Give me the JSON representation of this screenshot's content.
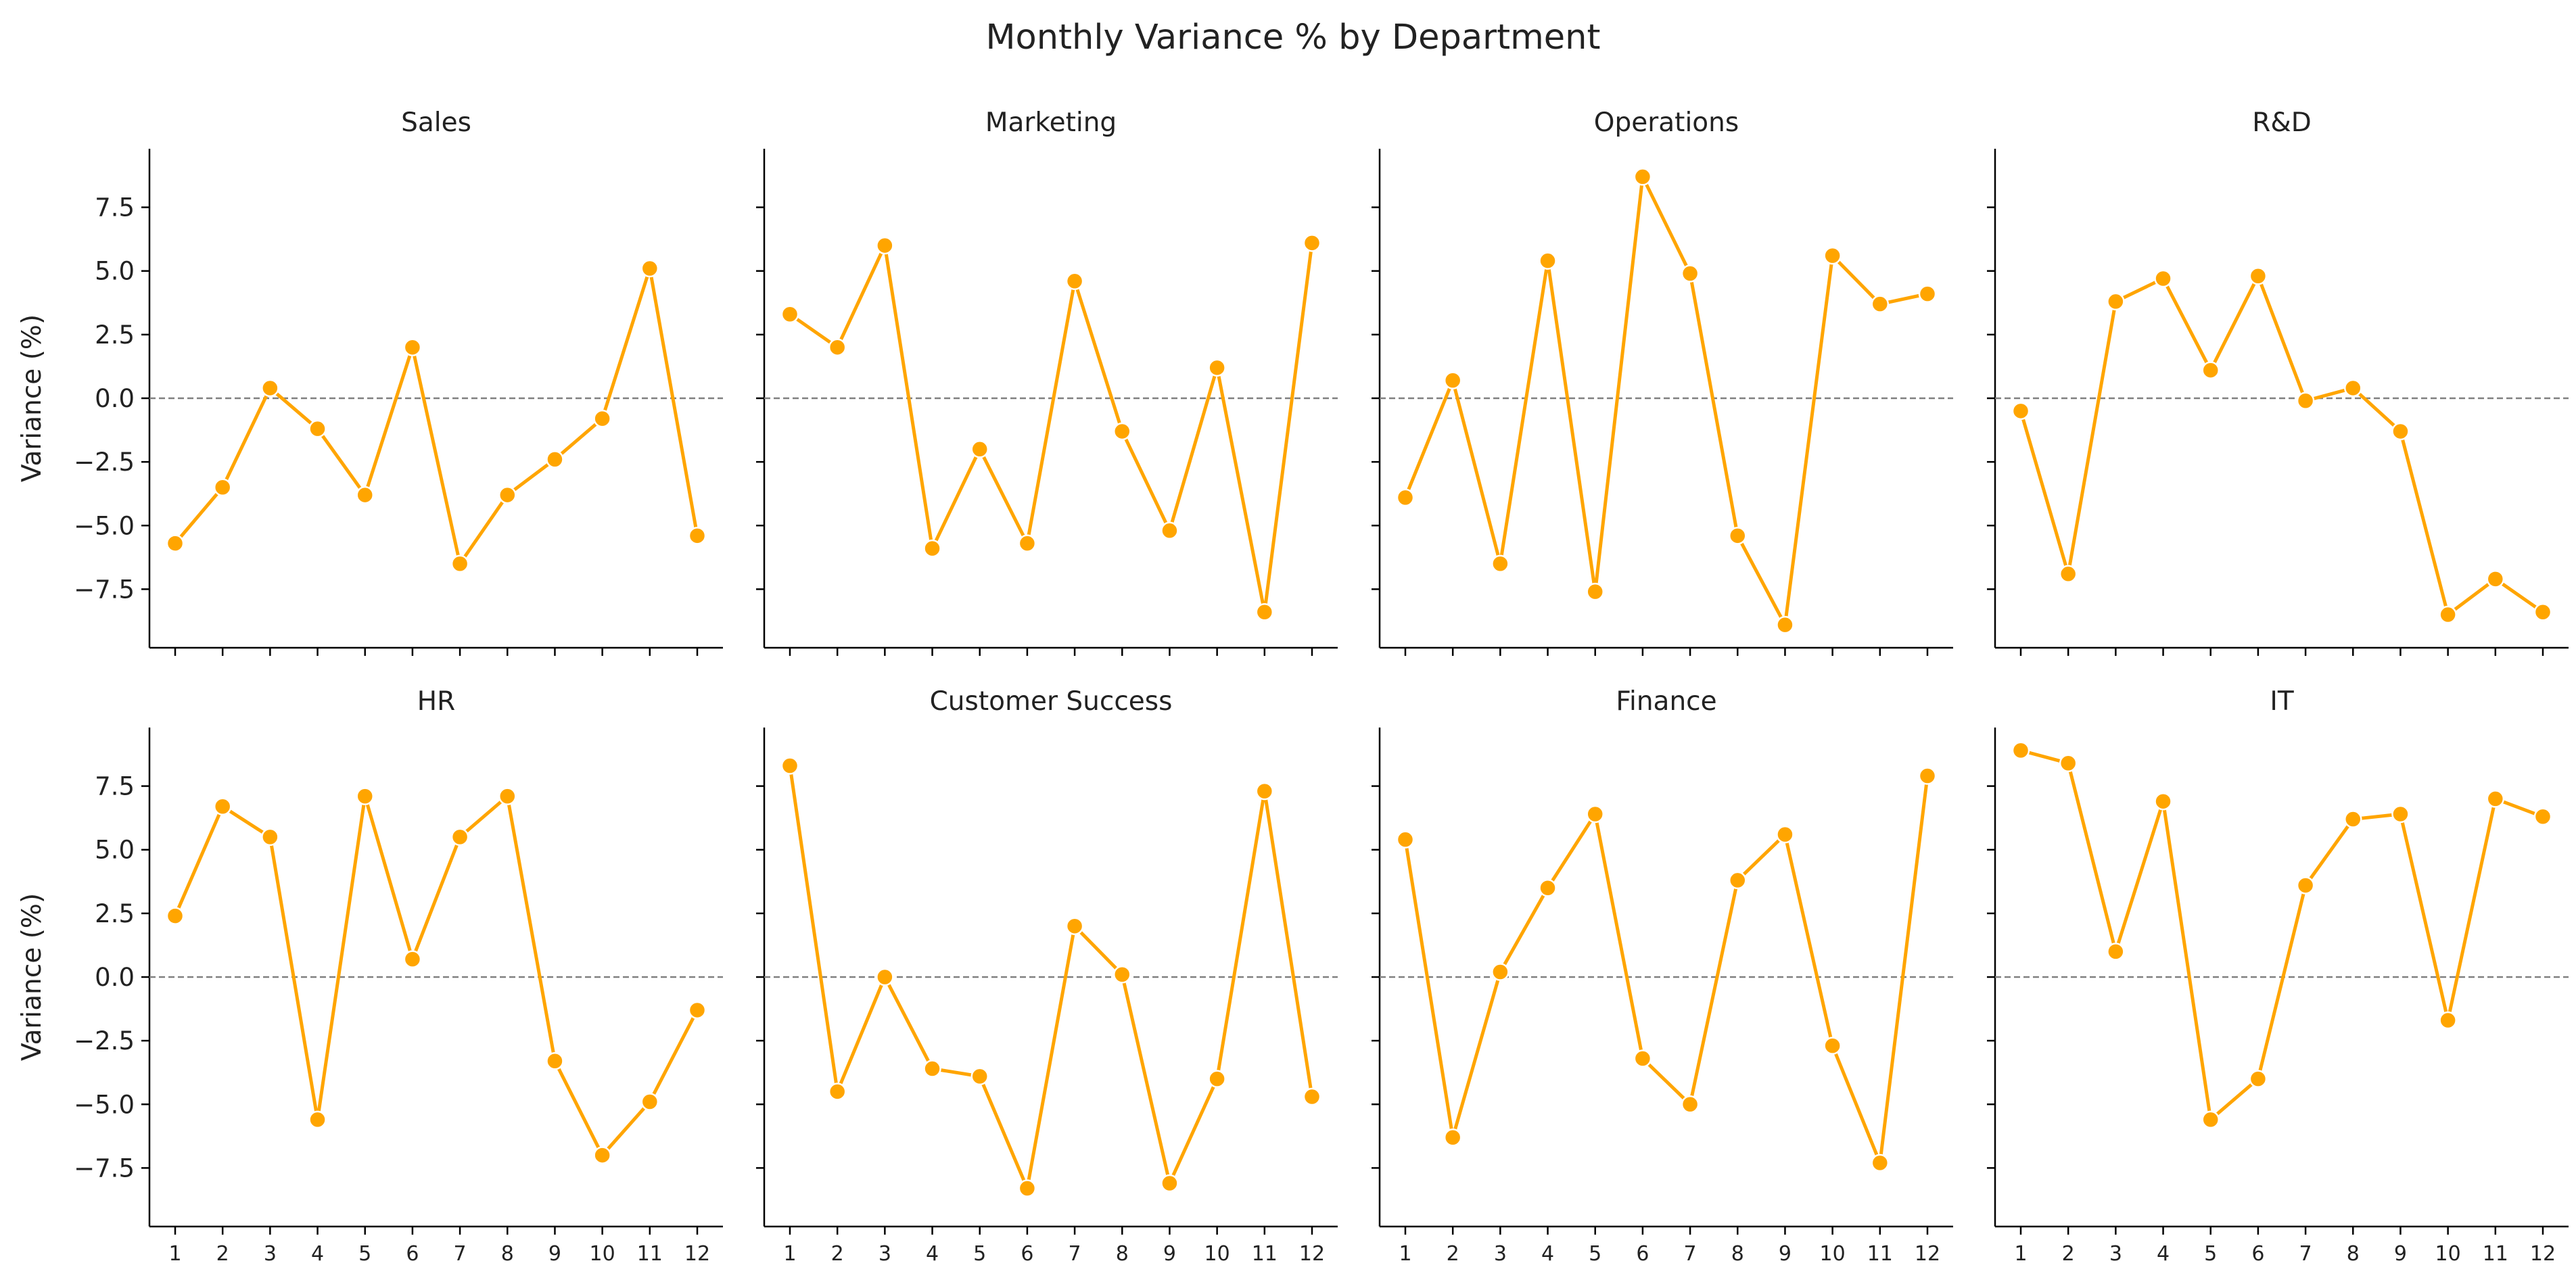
{
  "chart_data": {
    "type": "line",
    "title": "Monthly Variance % by Department",
    "ylabel": "Variance (%)",
    "xlabel": "",
    "x": [
      1,
      2,
      3,
      4,
      5,
      6,
      7,
      8,
      9,
      10,
      11,
      12
    ],
    "ylim": [
      -9.8,
      9.8
    ],
    "yticks": [
      -7.5,
      -5.0,
      -2.5,
      0.0,
      2.5,
      5.0,
      7.5
    ],
    "ytick_labels": [
      "−7.5",
      "−5.0",
      "−2.5",
      "0.0",
      "2.5",
      "5.0",
      "7.5"
    ],
    "reference_line": 0,
    "grid": false,
    "colors": {
      "line": "#FFA500",
      "reference": "#808080",
      "axis": "#000000"
    },
    "panels": [
      {
        "name": "Sales",
        "values": [
          -5.7,
          -3.5,
          0.4,
          -1.2,
          -3.8,
          2.0,
          -6.5,
          -3.8,
          -2.4,
          -0.8,
          5.1,
          -5.4
        ]
      },
      {
        "name": "Marketing",
        "values": [
          3.3,
          2.0,
          6.0,
          -5.9,
          -2.0,
          -5.7,
          4.6,
          -1.3,
          -5.2,
          1.2,
          -8.4,
          6.1
        ]
      },
      {
        "name": "Operations",
        "values": [
          -3.9,
          0.7,
          -6.5,
          5.4,
          -7.6,
          8.7,
          4.9,
          -5.4,
          -8.9,
          5.6,
          3.7,
          4.1
        ]
      },
      {
        "name": "R&D",
        "values": [
          -0.5,
          -6.9,
          3.8,
          4.7,
          1.1,
          4.8,
          -0.1,
          0.4,
          -1.3,
          -8.5,
          -7.1,
          -8.4
        ]
      },
      {
        "name": "HR",
        "values": [
          2.4,
          6.7,
          5.5,
          -5.6,
          7.1,
          0.7,
          5.5,
          7.1,
          -3.3,
          -7.0,
          -4.9,
          -1.3
        ]
      },
      {
        "name": "Customer Success",
        "values": [
          8.3,
          -4.5,
          0.0,
          -3.6,
          -3.9,
          -8.3,
          2.0,
          0.1,
          -8.1,
          -4.0,
          7.3,
          -4.7
        ]
      },
      {
        "name": "Finance",
        "values": [
          5.4,
          -6.3,
          0.2,
          3.5,
          6.4,
          -3.2,
          -5.0,
          3.8,
          5.6,
          -2.7,
          -7.3,
          7.9
        ]
      },
      {
        "name": "IT",
        "values": [
          8.9,
          8.4,
          1.0,
          6.9,
          -5.6,
          -4.0,
          3.6,
          6.2,
          6.4,
          -1.7,
          7.0,
          6.3
        ]
      }
    ]
  }
}
